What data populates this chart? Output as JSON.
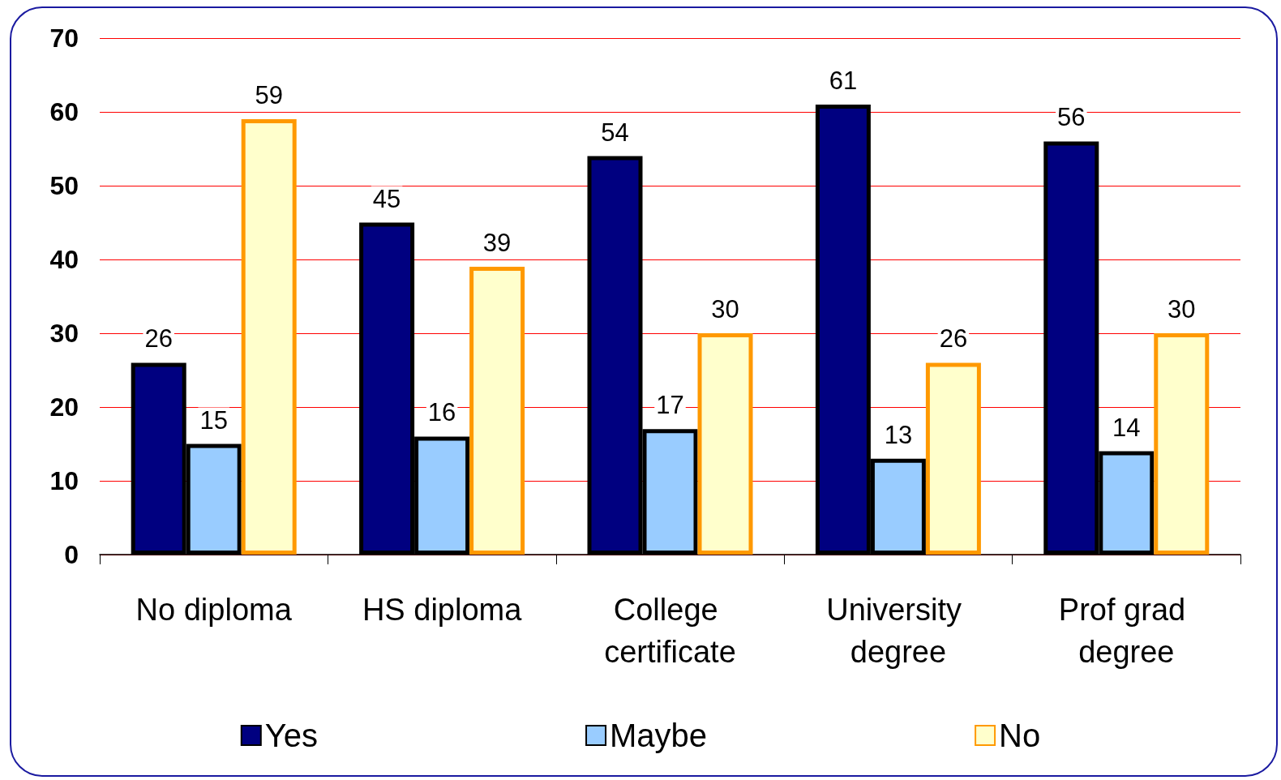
{
  "chart_data": {
    "type": "bar",
    "categories": [
      "No diploma",
      "HS diploma",
      "College certificate",
      "University degree",
      "Prof grad degree"
    ],
    "series": [
      {
        "name": "Yes",
        "color": "#000080",
        "values": [
          26,
          45,
          54,
          61,
          56
        ]
      },
      {
        "name": "Maybe",
        "color": "#99ccff",
        "values": [
          15,
          16,
          17,
          13,
          14
        ]
      },
      {
        "name": "No",
        "color": "#ffffcc",
        "values": [
          59,
          39,
          30,
          26,
          30
        ]
      }
    ],
    "ylim": [
      0,
      70
    ],
    "yticks": [
      0,
      10,
      20,
      30,
      40,
      50,
      60,
      70
    ],
    "grid": "y",
    "legend": "bottom",
    "data_labels": true
  }
}
